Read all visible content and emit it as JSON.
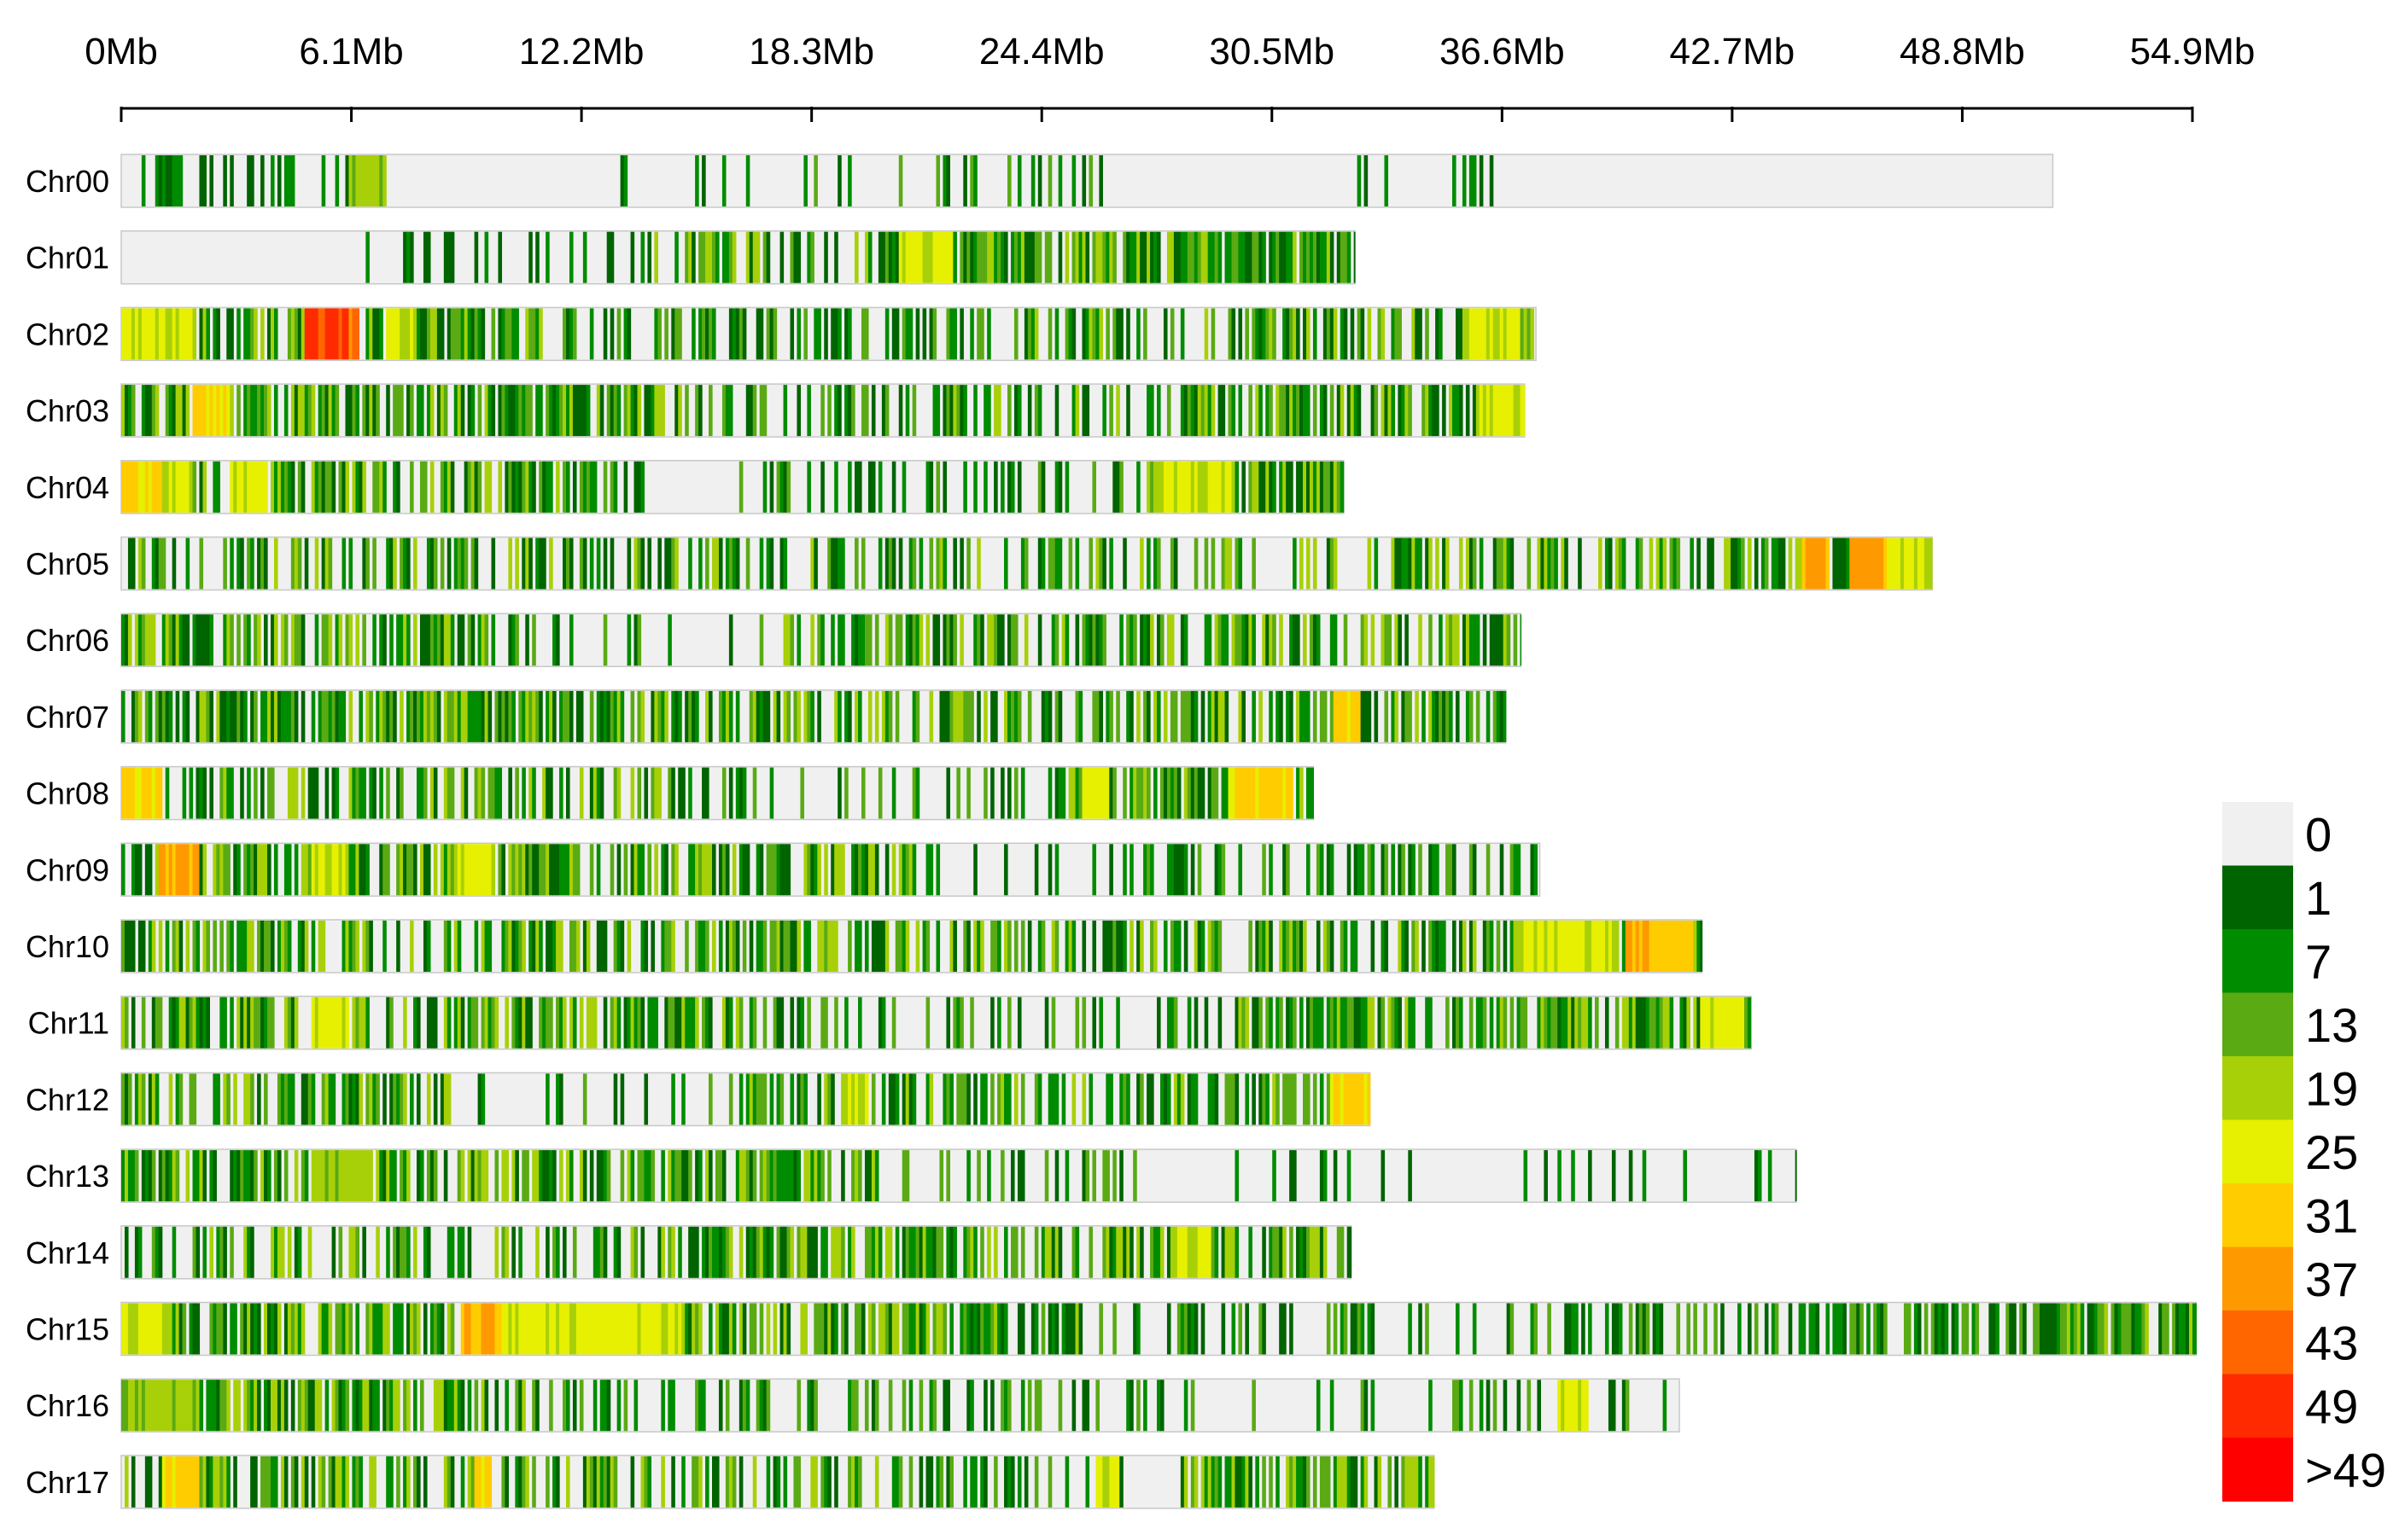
{
  "chart_data": {
    "type": "heatmap",
    "title": "",
    "xlabel": "",
    "ylabel": "",
    "x_unit": "Mb",
    "xlim": [
      0,
      54.9
    ],
    "x_ticks": [
      {
        "value": 0,
        "label": "0Mb"
      },
      {
        "value": 6.1,
        "label": "6.1Mb"
      },
      {
        "value": 12.2,
        "label": "12.2Mb"
      },
      {
        "value": 18.3,
        "label": "18.3Mb"
      },
      {
        "value": 24.4,
        "label": "24.4Mb"
      },
      {
        "value": 30.5,
        "label": "30.5Mb"
      },
      {
        "value": 36.6,
        "label": "36.6Mb"
      },
      {
        "value": 42.7,
        "label": "42.7Mb"
      },
      {
        "value": 48.8,
        "label": "48.8Mb"
      },
      {
        "value": 54.9,
        "label": "54.9Mb"
      }
    ],
    "legend": {
      "position": "right",
      "bins": [
        {
          "label": "0",
          "color": "#f0f0f0"
        },
        {
          "label": "1",
          "color": "#006400"
        },
        {
          "label": "7",
          "color": "#008c00"
        },
        {
          "label": "13",
          "color": "#5aaa14"
        },
        {
          "label": "19",
          "color": "#a8d008"
        },
        {
          "label": "25",
          "color": "#e6f000"
        },
        {
          "label": "31",
          "color": "#ffcc00"
        },
        {
          "label": "37",
          "color": "#ff9900"
        },
        {
          "label": "43",
          "color": "#ff6600"
        },
        {
          "label": "49",
          "color": "#ff2a00"
        },
        {
          "label": ">49",
          "color": "#ff0000"
        }
      ]
    },
    "chromosomes": [
      {
        "name": "Chr00",
        "length": 51.2,
        "seed": 11,
        "dense": [
          [
            0.0,
            6.8,
            0.35,
            2
          ],
          [
            12.8,
            17.2,
            0.12,
            2
          ],
          [
            18.0,
            26.0,
            0.22,
            3
          ],
          [
            32.5,
            36.8,
            0.18,
            2
          ]
        ],
        "hot": [
          [
            6.0,
            7.0,
            4
          ]
        ]
      },
      {
        "name": "Chr01",
        "length": 32.7,
        "seed": 23,
        "dense": [
          [
            6.3,
            14.0,
            0.18,
            2
          ],
          [
            14.0,
            20.0,
            0.55,
            4
          ],
          [
            20.0,
            32.7,
            0.85,
            4
          ]
        ],
        "hot": [
          [
            20.6,
            22.0,
            5
          ]
        ]
      },
      {
        "name": "Chr02",
        "length": 37.5,
        "seed": 37,
        "dense": [
          [
            0.0,
            12.0,
            0.7,
            4
          ],
          [
            12.0,
            24.0,
            0.45,
            3
          ],
          [
            24.0,
            37.5,
            0.55,
            4
          ]
        ],
        "hot": [
          [
            0.0,
            1.8,
            5
          ],
          [
            4.8,
            6.0,
            9
          ],
          [
            6.0,
            6.3,
            8
          ],
          [
            7.0,
            7.8,
            5
          ],
          [
            35.5,
            37.0,
            5
          ]
        ]
      },
      {
        "name": "Chr03",
        "length": 37.2,
        "seed": 41,
        "dense": [
          [
            0.0,
            14.8,
            0.8,
            4
          ],
          [
            14.8,
            21.0,
            0.4,
            3
          ],
          [
            21.0,
            36.2,
            0.55,
            4
          ]
        ],
        "hot": [
          [
            1.8,
            2.8,
            6
          ],
          [
            36.0,
            37.2,
            5
          ]
        ]
      },
      {
        "name": "Chr04",
        "length": 32.4,
        "seed": 53,
        "dense": [
          [
            0.0,
            14.0,
            0.65,
            4
          ],
          [
            16.0,
            27.0,
            0.3,
            3
          ],
          [
            27.0,
            32.4,
            0.85,
            4
          ]
        ],
        "hot": [
          [
            0.0,
            1.0,
            6
          ],
          [
            1.0,
            1.8,
            5
          ],
          [
            2.8,
            3.8,
            5
          ],
          [
            27.5,
            29.5,
            5
          ]
        ]
      },
      {
        "name": "Chr05",
        "length": 48.0,
        "seed": 67,
        "dense": [
          [
            0.0,
            39.2,
            0.45,
            4
          ],
          [
            36.3,
            38.8,
            0.8,
            4
          ],
          [
            39.0,
            48.0,
            0.6,
            4
          ]
        ],
        "hot": [
          [
            44.5,
            45.2,
            7
          ],
          [
            45.8,
            46.8,
            7
          ],
          [
            46.8,
            48.0,
            5
          ]
        ]
      },
      {
        "name": "Chr06",
        "length": 37.1,
        "seed": 71,
        "dense": [
          [
            0.0,
            11.0,
            0.65,
            4
          ],
          [
            11.0,
            17.5,
            0.15,
            3
          ],
          [
            17.5,
            37.1,
            0.6,
            4
          ]
        ],
        "hot": []
      },
      {
        "name": "Chr07",
        "length": 36.7,
        "seed": 83,
        "dense": [
          [
            0.0,
            15.8,
            0.7,
            4
          ],
          [
            15.8,
            36.7,
            0.55,
            4
          ]
        ],
        "hot": [
          [
            32.1,
            32.8,
            6
          ]
        ]
      },
      {
        "name": "Chr08",
        "length": 31.6,
        "seed": 97,
        "dense": [
          [
            0.0,
            14.5,
            0.6,
            4
          ],
          [
            14.5,
            25.0,
            0.3,
            3
          ],
          [
            25.0,
            31.6,
            0.7,
            4
          ]
        ],
        "hot": [
          [
            0.0,
            1.0,
            6
          ],
          [
            25.4,
            26.1,
            5
          ],
          [
            29.3,
            31.0,
            6
          ]
        ]
      },
      {
        "name": "Chr09",
        "length": 37.6,
        "seed": 101,
        "dense": [
          [
            0.0,
            21.0,
            0.7,
            4
          ],
          [
            21.0,
            26.5,
            0.12,
            2
          ],
          [
            26.5,
            37.6,
            0.45,
            3
          ]
        ],
        "hot": [
          [
            0.9,
            2.0,
            7
          ],
          [
            5.0,
            5.9,
            5
          ],
          [
            8.8,
            9.8,
            5
          ]
        ]
      },
      {
        "name": "Chr10",
        "length": 41.9,
        "seed": 113,
        "dense": [
          [
            0.0,
            41.9,
            0.55,
            4
          ]
        ],
        "hot": [
          [
            37.0,
            39.5,
            5
          ],
          [
            39.8,
            40.5,
            7
          ],
          [
            40.5,
            41.6,
            6
          ]
        ]
      },
      {
        "name": "Chr11",
        "length": 43.2,
        "seed": 127,
        "dense": [
          [
            0.0,
            17.5,
            0.65,
            4
          ],
          [
            17.5,
            29.5,
            0.3,
            3
          ],
          [
            29.5,
            43.2,
            0.7,
            4
          ]
        ],
        "hot": [
          [
            5.0,
            6.0,
            5
          ],
          [
            41.8,
            43.0,
            5
          ]
        ]
      },
      {
        "name": "Chr12",
        "length": 33.1,
        "seed": 131,
        "dense": [
          [
            0.0,
            8.8,
            0.6,
            4
          ],
          [
            8.8,
            15.5,
            0.25,
            3
          ],
          [
            15.5,
            33.1,
            0.6,
            4
          ]
        ],
        "hot": [
          [
            19.2,
            19.8,
            5
          ],
          [
            32.0,
            33.1,
            6
          ]
        ]
      },
      {
        "name": "Chr13",
        "length": 44.4,
        "seed": 139,
        "dense": [
          [
            0.0,
            20.0,
            0.7,
            4
          ],
          [
            20.0,
            27.0,
            0.25,
            3
          ],
          [
            27.0,
            44.4,
            0.15,
            2
          ]
        ],
        "hot": [
          [
            5.0,
            6.5,
            4
          ]
        ]
      },
      {
        "name": "Chr14",
        "length": 32.6,
        "seed": 149,
        "dense": [
          [
            0.0,
            12.5,
            0.45,
            4
          ],
          [
            12.5,
            32.6,
            0.65,
            4
          ]
        ],
        "hot": [
          [
            27.8,
            28.8,
            5
          ]
        ]
      },
      {
        "name": "Chr15",
        "length": 55.0,
        "seed": 157,
        "dense": [
          [
            0.0,
            26.0,
            0.7,
            4
          ],
          [
            26.0,
            44.0,
            0.35,
            3
          ],
          [
            44.0,
            50.0,
            0.5,
            3
          ],
          [
            50.0,
            55.0,
            0.8,
            4
          ]
        ],
        "hot": [
          [
            0.0,
            1.0,
            5
          ],
          [
            9.0,
            10.0,
            7
          ],
          [
            10.0,
            14.8,
            5
          ]
        ]
      },
      {
        "name": "Chr16",
        "length": 41.3,
        "seed": 163,
        "dense": [
          [
            0.0,
            11.0,
            0.8,
            4
          ],
          [
            11.0,
            26.0,
            0.4,
            3
          ],
          [
            26.0,
            41.3,
            0.2,
            3
          ]
        ],
        "hot": [
          [
            0.0,
            2.0,
            4
          ],
          [
            38.0,
            38.8,
            5
          ]
        ]
      },
      {
        "name": "Chr17",
        "length": 34.8,
        "seed": 173,
        "dense": [
          [
            0.0,
            20.0,
            0.55,
            4
          ],
          [
            20.0,
            26.3,
            0.35,
            3
          ],
          [
            26.3,
            28.0,
            0.05,
            2
          ],
          [
            28.0,
            34.8,
            0.65,
            4
          ]
        ],
        "hot": [
          [
            1.0,
            2.0,
            6
          ],
          [
            9.3,
            9.8,
            6
          ],
          [
            25.8,
            26.4,
            5
          ]
        ]
      }
    ]
  }
}
